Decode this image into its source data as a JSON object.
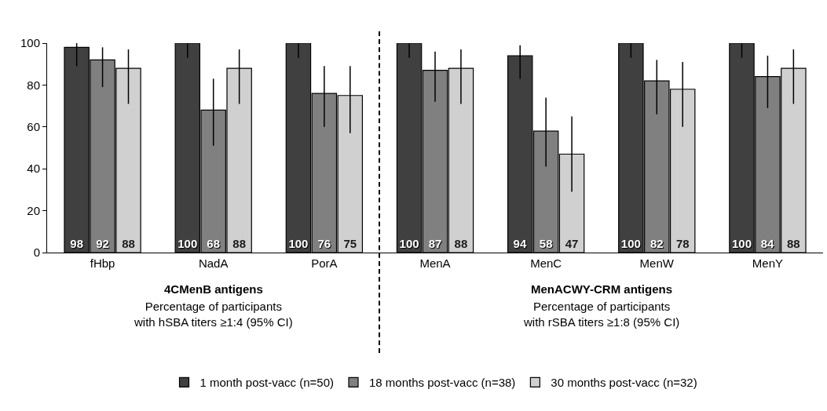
{
  "chart_data": {
    "type": "bar",
    "categories": [
      "fHbp",
      "NadA",
      "PorA",
      "MenA",
      "MenC",
      "MenW",
      "MenY"
    ],
    "series": [
      {
        "name": "1 month post-vacc (n=50)",
        "color": "#404040",
        "values": [
          98,
          100,
          100,
          100,
          94,
          100,
          100
        ],
        "errors": [
          [
            89,
            100
          ],
          [
            93,
            100
          ],
          [
            93,
            100
          ],
          [
            93,
            100
          ],
          [
            83,
            99
          ],
          [
            93,
            100
          ],
          [
            93,
            100
          ]
        ]
      },
      {
        "name": "18 months post-vacc (n=38)",
        "color": "#808080",
        "values": [
          92,
          68,
          76,
          87,
          58,
          82,
          84
        ],
        "errors": [
          [
            79,
            98
          ],
          [
            51,
            83
          ],
          [
            60,
            89
          ],
          [
            72,
            96
          ],
          [
            41,
            74
          ],
          [
            66,
            92
          ],
          [
            69,
            94
          ]
        ]
      },
      {
        "name": "30 months post-vacc (n=32)",
        "color": "#d0d0d0",
        "values": [
          88,
          88,
          75,
          88,
          47,
          78,
          88
        ],
        "errors": [
          [
            71,
            97
          ],
          [
            71,
            97
          ],
          [
            57,
            89
          ],
          [
            71,
            97
          ],
          [
            29,
            65
          ],
          [
            60,
            91
          ],
          [
            71,
            97
          ]
        ]
      }
    ],
    "annotations": [
      "4CMenB antigens",
      "Percentage of participants\nwith hSBA titers ≥1:4 (95% CI)",
      "MenACWY-CRM antigens",
      "Percentage of participants\nwith rSBA titers ≥1:8 (95% CI)"
    ],
    "ylim": [
      0,
      100
    ],
    "yticks": [
      0,
      20,
      40,
      60,
      80,
      100
    ],
    "data_labels": true,
    "grid": false,
    "legend": "bottom"
  }
}
